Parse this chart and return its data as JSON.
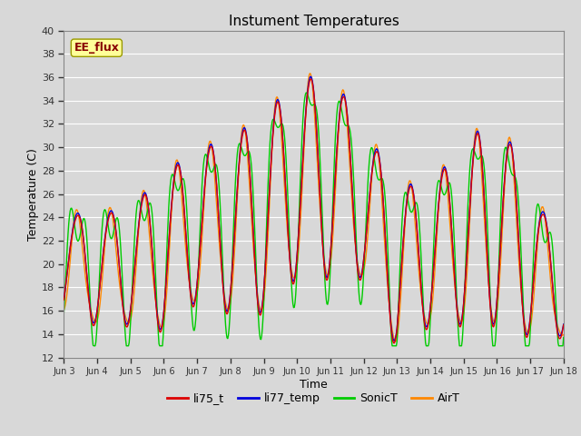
{
  "title": "Instument Temperatures",
  "xlabel": "Time",
  "ylabel": "Temperature (C)",
  "ylim": [
    12,
    40
  ],
  "background_color": "#d8d8d8",
  "plot_bg_color": "#d8d8d8",
  "grid_color": "#ffffff",
  "annotation_text": "EE_flux",
  "annotation_bg": "#ffff99",
  "annotation_edge": "#999900",
  "annotation_text_color": "#880000",
  "lines": {
    "li75_t": {
      "color": "#dd0000",
      "lw": 1.0,
      "zorder": 4
    },
    "li77_temp": {
      "color": "#0000dd",
      "lw": 1.0,
      "zorder": 3
    },
    "SonicT": {
      "color": "#00cc00",
      "lw": 1.0,
      "zorder": 2
    },
    "AirT": {
      "color": "#ff8800",
      "lw": 1.0,
      "zorder": 1
    }
  },
  "legend_labels": [
    "li75_t",
    "li77_temp",
    "SonicT",
    "AirT"
  ],
  "legend_colors": [
    "#dd0000",
    "#0000dd",
    "#00cc00",
    "#ff8800"
  ],
  "xtick_labels": [
    "Jun 3",
    "Jun 4",
    "Jun 5",
    "Jun 6",
    "Jun 7",
    "Jun 8",
    "Jun 9",
    "Jun 10",
    "Jun 11",
    "Jun 12",
    "Jun 13",
    "Jun 14",
    "Jun 15",
    "Jun 16",
    "Jun 17",
    "Jun 18"
  ],
  "xtick_positions": [
    3,
    4,
    5,
    6,
    7,
    8,
    9,
    10,
    11,
    12,
    13,
    14,
    15,
    16,
    17,
    18
  ],
  "ytick_positions": [
    12,
    14,
    16,
    18,
    20,
    22,
    24,
    26,
    28,
    30,
    32,
    34,
    36,
    38,
    40
  ],
  "figwidth": 6.4,
  "figheight": 4.8,
  "dpi": 100
}
